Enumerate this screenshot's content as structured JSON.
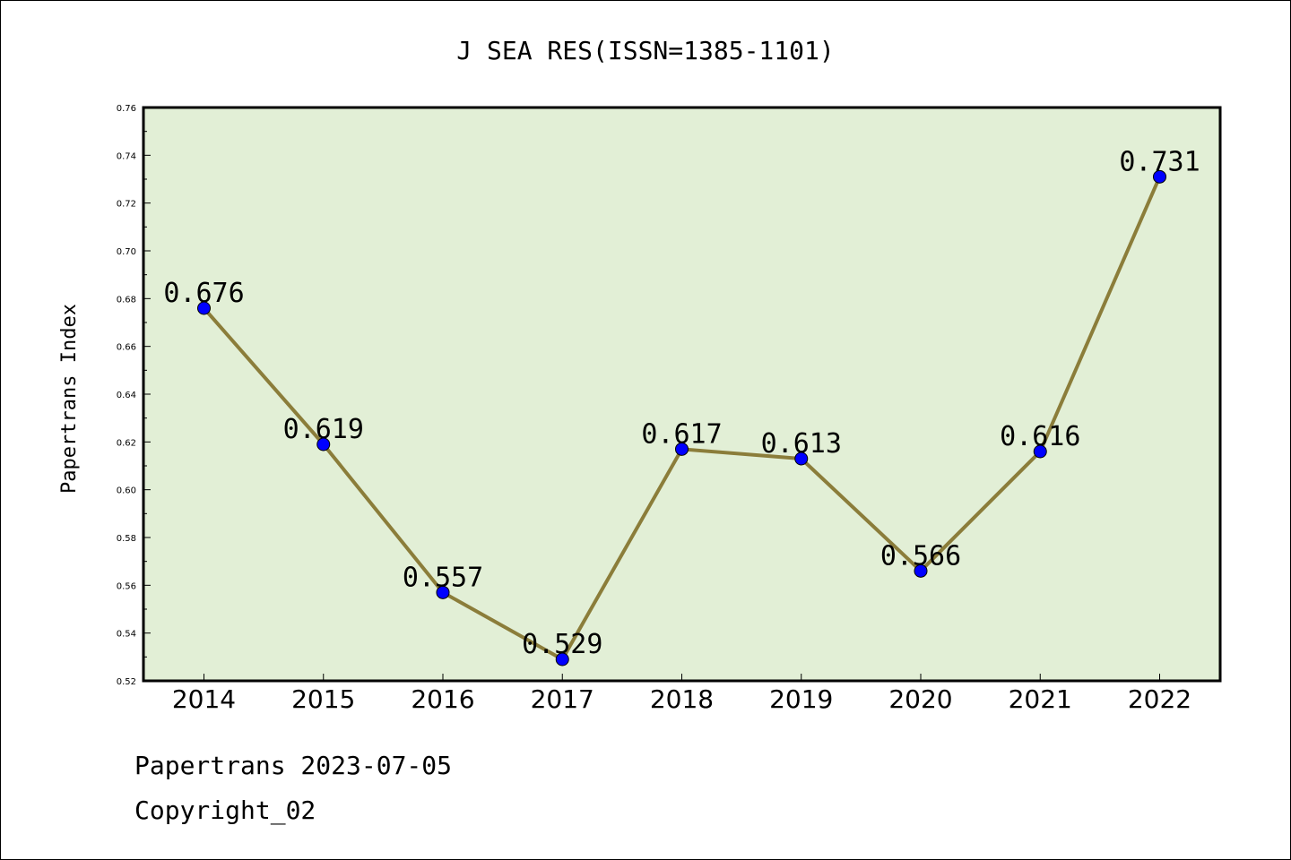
{
  "chart_data": {
    "type": "line",
    "title": "J SEA RES(ISSN=1385-1101)",
    "xlabel": "",
    "ylabel": "Papertrans Index",
    "categories": [
      "2014",
      "2015",
      "2016",
      "2017",
      "2018",
      "2019",
      "2020",
      "2021",
      "2022"
    ],
    "series": [
      {
        "values": [
          0.676,
          0.619,
          0.557,
          0.529,
          0.617,
          0.613,
          0.566,
          0.616,
          0.731
        ],
        "data_labels": [
          "0.676",
          "0.619",
          "0.557",
          "0.529",
          "0.617",
          "0.613",
          "0.566",
          "0.616",
          "0.731"
        ],
        "line_color": "#8b7d3a",
        "marker_color": "#0000ff"
      }
    ],
    "ylim": [
      0.52,
      0.76
    ],
    "yticks": [
      "0.52",
      "0.54",
      "0.56",
      "0.58",
      "0.60",
      "0.62",
      "0.64",
      "0.66",
      "0.68",
      "0.70",
      "0.72",
      "0.74",
      "0.76"
    ],
    "plot_background": "#e2efd6",
    "grid": false,
    "legend": "none"
  },
  "footer": {
    "line1": "Papertrans 2023-07-05",
    "line2": "Copyright_02"
  }
}
